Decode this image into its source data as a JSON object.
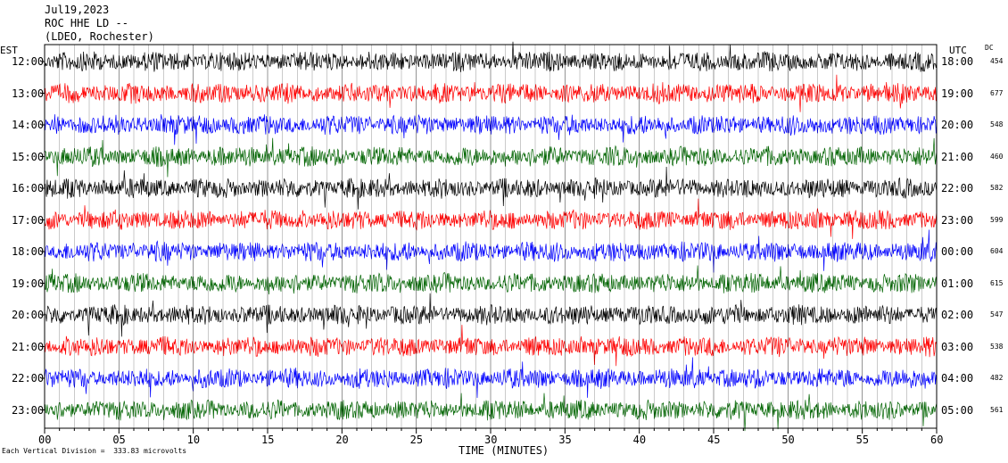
{
  "header": {
    "date": "Jul19,2023",
    "station": "ROC HHE LD --",
    "network": "(LDEO, Rochester)"
  },
  "left_axis_title": "EST",
  "right_axis_title": "UTC",
  "dc_title": "DC",
  "footer": "Each Vertical Division =  333.83 microvolts",
  "colors": {
    "trace_cycle": [
      "#000000",
      "#ff0000",
      "#0000ff",
      "#006400"
    ],
    "grid": "#000000",
    "event": "#a00000"
  },
  "chart_data": {
    "type": "line",
    "subtype": "seismogram-helicorder",
    "xlabel": "TIME (MINUTES)",
    "xlim": [
      0,
      60
    ],
    "xticks": [
      "00",
      "05",
      "10",
      "15",
      "20",
      "25",
      "30",
      "35",
      "40",
      "45",
      "50",
      "55",
      "60"
    ],
    "rows": [
      {
        "est": "12:00",
        "utc": "18:00",
        "dc": "454"
      },
      {
        "est": "13:00",
        "utc": "19:00",
        "dc": "677"
      },
      {
        "est": "14:00",
        "utc": "20:00",
        "dc": "548"
      },
      {
        "est": "15:00",
        "utc": "21:00",
        "dc": "460"
      },
      {
        "est": "16:00",
        "utc": "22:00",
        "dc": "582"
      },
      {
        "est": "17:00",
        "utc": "23:00",
        "dc": "599"
      },
      {
        "est": "18:00",
        "utc": "00:00",
        "dc": "604"
      },
      {
        "est": "19:00",
        "utc": "01:00",
        "dc": "615"
      },
      {
        "est": "20:00",
        "utc": "02:00",
        "dc": "547"
      },
      {
        "est": "21:00",
        "utc": "03:00",
        "dc": "538"
      },
      {
        "est": "22:00",
        "utc": "04:00",
        "dc": "482"
      },
      {
        "est": "23:00",
        "utc": "05:00",
        "dc": "561"
      }
    ],
    "grid": true
  }
}
